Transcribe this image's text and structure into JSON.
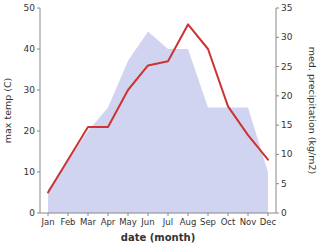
{
  "chart_data": {
    "type": "line",
    "categories": [
      "Jan",
      "Feb",
      "Mar",
      "Apr",
      "May",
      "Jun",
      "Jul",
      "Aug",
      "Sep",
      "Oct",
      "Nov",
      "Dec"
    ],
    "xlabel": "date (month)",
    "ylabel": "max temp (C)",
    "y2label": "med. precipitation (kg/m2)",
    "series": [
      {
        "type": "area",
        "axis": "y2",
        "color": "#b0b8e8",
        "values": [
          4,
          9,
          14,
          18,
          26,
          31,
          28,
          28,
          18,
          18,
          18,
          7
        ]
      },
      {
        "type": "line",
        "axis": "y",
        "color": "#cc3333",
        "values": [
          5,
          13,
          21,
          21,
          30,
          36,
          37,
          46,
          40,
          26,
          19,
          13
        ]
      }
    ],
    "ylim": [
      0,
      50
    ],
    "yticks": [
      0,
      10,
      20,
      30,
      40,
      50
    ],
    "y2lim": [
      0,
      35
    ],
    "y2ticks": [
      0,
      5,
      10,
      15,
      20,
      25,
      30,
      35
    ],
    "grid": false
  }
}
